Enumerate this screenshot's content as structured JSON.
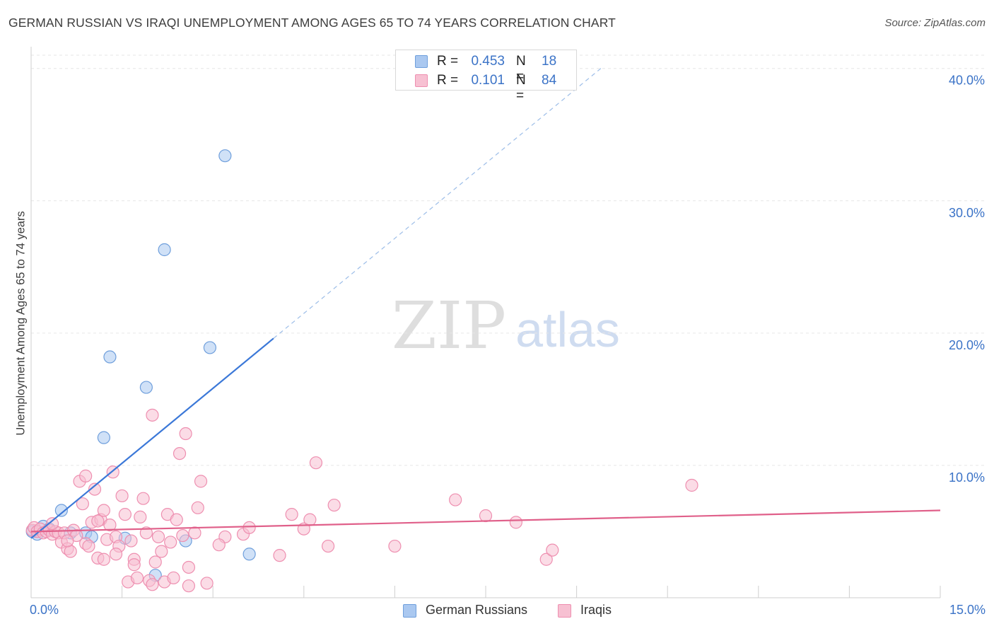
{
  "header": {
    "title": "GERMAN RUSSIAN VS IRAQI UNEMPLOYMENT AMONG AGES 65 TO 74 YEARS CORRELATION CHART",
    "source": "Source: ZipAtlas.com"
  },
  "watermark": {
    "zip": "ZIP",
    "atlas": "atlas"
  },
  "legend": {
    "r_label": "R =",
    "n_label": "N =",
    "rows": [
      {
        "r": "0.453",
        "n": "18",
        "fill": "#aac8f0",
        "stroke": "#6f9fdc"
      },
      {
        "r": "0.101",
        "n": "84",
        "fill": "#f7c0d2",
        "stroke": "#ee8fb0"
      }
    ]
  },
  "chart_data": {
    "type": "scatter",
    "title": "GERMAN RUSSIAN VS IRAQI UNEMPLOYMENT AMONG AGES 65 TO 74 YEARS CORRELATION CHART",
    "xlabel": "",
    "ylabel": "Unemployment Among Ages 65 to 74 years",
    "xlim": [
      0,
      15
    ],
    "ylim": [
      0,
      41
    ],
    "x_tick_labels": [
      "0.0%",
      "15.0%"
    ],
    "y_ticks": [
      10,
      20,
      30,
      40
    ],
    "y_tick_labels": [
      "10.0%",
      "20.0%",
      "30.0%",
      "40.0%"
    ],
    "grid": true,
    "legend_position": "bottom-center",
    "series": [
      {
        "name": "German Russians",
        "color": "#3b78d8",
        "fill": "#aac8f0",
        "r": 0.453,
        "n": 18,
        "points": [
          {
            "x": 0.02,
            "y": 5.0
          },
          {
            "x": 0.1,
            "y": 4.8
          },
          {
            "x": 0.2,
            "y": 5.4
          },
          {
            "x": 0.3,
            "y": 5.2
          },
          {
            "x": 0.5,
            "y": 6.6
          },
          {
            "x": 0.65,
            "y": 4.9
          },
          {
            "x": 0.9,
            "y": 4.9
          },
          {
            "x": 1.0,
            "y": 4.6
          },
          {
            "x": 1.2,
            "y": 12.1
          },
          {
            "x": 1.3,
            "y": 18.2
          },
          {
            "x": 1.55,
            "y": 4.5
          },
          {
            "x": 1.9,
            "y": 15.9
          },
          {
            "x": 2.05,
            "y": 1.7
          },
          {
            "x": 2.2,
            "y": 26.3
          },
          {
            "x": 2.55,
            "y": 4.3
          },
          {
            "x": 2.95,
            "y": 18.9
          },
          {
            "x": 3.2,
            "y": 33.4
          },
          {
            "x": 3.6,
            "y": 3.3
          }
        ],
        "trend": {
          "x0": 0,
          "y0": 4.5,
          "x1": 4.0,
          "y1": 19.6,
          "dash_to_x": 9.4,
          "dash_to_y": 40.0
        }
      },
      {
        "name": "Iraqis",
        "color": "#e0608a",
        "fill": "#f7c0d2",
        "r": 0.101,
        "n": 84,
        "points": [
          {
            "x": 0.02,
            "y": 5.1
          },
          {
            "x": 0.05,
            "y": 5.3
          },
          {
            "x": 0.1,
            "y": 5.0
          },
          {
            "x": 0.15,
            "y": 5.2
          },
          {
            "x": 0.2,
            "y": 4.9
          },
          {
            "x": 0.25,
            "y": 5.0
          },
          {
            "x": 0.3,
            "y": 5.1
          },
          {
            "x": 0.35,
            "y": 4.8
          },
          {
            "x": 0.4,
            "y": 5.0
          },
          {
            "x": 0.45,
            "y": 4.9
          },
          {
            "x": 0.5,
            "y": 4.2
          },
          {
            "x": 0.55,
            "y": 4.9
          },
          {
            "x": 0.6,
            "y": 3.7
          },
          {
            "x": 0.65,
            "y": 3.5
          },
          {
            "x": 0.7,
            "y": 5.1
          },
          {
            "x": 0.75,
            "y": 4.7
          },
          {
            "x": 0.8,
            "y": 8.8
          },
          {
            "x": 0.85,
            "y": 7.1
          },
          {
            "x": 0.9,
            "y": 4.1
          },
          {
            "x": 0.95,
            "y": 3.9
          },
          {
            "x": 1.0,
            "y": 5.7
          },
          {
            "x": 1.05,
            "y": 8.2
          },
          {
            "x": 1.1,
            "y": 3.0
          },
          {
            "x": 1.15,
            "y": 5.9
          },
          {
            "x": 1.2,
            "y": 2.9
          },
          {
            "x": 1.25,
            "y": 4.4
          },
          {
            "x": 1.3,
            "y": 5.5
          },
          {
            "x": 1.35,
            "y": 9.5
          },
          {
            "x": 1.4,
            "y": 4.6
          },
          {
            "x": 1.45,
            "y": 3.9
          },
          {
            "x": 1.5,
            "y": 7.7
          },
          {
            "x": 1.55,
            "y": 6.3
          },
          {
            "x": 1.6,
            "y": 1.2
          },
          {
            "x": 1.65,
            "y": 4.3
          },
          {
            "x": 1.7,
            "y": 2.9
          },
          {
            "x": 1.75,
            "y": 1.5
          },
          {
            "x": 1.8,
            "y": 6.1
          },
          {
            "x": 1.85,
            "y": 7.5
          },
          {
            "x": 1.9,
            "y": 4.9
          },
          {
            "x": 1.95,
            "y": 1.3
          },
          {
            "x": 2.0,
            "y": 13.8
          },
          {
            "x": 2.05,
            "y": 2.7
          },
          {
            "x": 2.1,
            "y": 4.6
          },
          {
            "x": 2.15,
            "y": 3.5
          },
          {
            "x": 2.2,
            "y": 1.2
          },
          {
            "x": 2.25,
            "y": 6.3
          },
          {
            "x": 2.3,
            "y": 4.2
          },
          {
            "x": 2.35,
            "y": 1.5
          },
          {
            "x": 2.4,
            "y": 5.9
          },
          {
            "x": 2.45,
            "y": 10.9
          },
          {
            "x": 2.5,
            "y": 4.7
          },
          {
            "x": 2.55,
            "y": 12.4
          },
          {
            "x": 2.6,
            "y": 2.3
          },
          {
            "x": 2.7,
            "y": 4.9
          },
          {
            "x": 2.75,
            "y": 6.8
          },
          {
            "x": 2.8,
            "y": 8.8
          },
          {
            "x": 2.9,
            "y": 1.1
          },
          {
            "x": 3.2,
            "y": 4.6
          },
          {
            "x": 3.5,
            "y": 4.8
          },
          {
            "x": 3.6,
            "y": 5.3
          },
          {
            "x": 4.1,
            "y": 3.2
          },
          {
            "x": 4.3,
            "y": 6.3
          },
          {
            "x": 4.5,
            "y": 5.2
          },
          {
            "x": 4.6,
            "y": 5.9
          },
          {
            "x": 4.7,
            "y": 10.2
          },
          {
            "x": 4.9,
            "y": 3.9
          },
          {
            "x": 5.0,
            "y": 7.0
          },
          {
            "x": 6.0,
            "y": 3.9
          },
          {
            "x": 7.0,
            "y": 7.4
          },
          {
            "x": 7.5,
            "y": 6.2
          },
          {
            "x": 8.0,
            "y": 5.7
          },
          {
            "x": 8.5,
            "y": 2.9
          },
          {
            "x": 8.6,
            "y": 3.6
          },
          {
            "x": 10.9,
            "y": 8.5
          },
          {
            "x": 1.2,
            "y": 6.6
          },
          {
            "x": 2.0,
            "y": 1.0
          },
          {
            "x": 1.7,
            "y": 2.5
          },
          {
            "x": 0.9,
            "y": 9.2
          },
          {
            "x": 1.4,
            "y": 3.3
          },
          {
            "x": 0.6,
            "y": 4.3
          },
          {
            "x": 1.1,
            "y": 5.8
          },
          {
            "x": 2.6,
            "y": 0.9
          },
          {
            "x": 0.35,
            "y": 5.6
          },
          {
            "x": 3.1,
            "y": 4.0
          }
        ],
        "trend": {
          "x0": 0,
          "y0": 5.0,
          "x1": 15.0,
          "y1": 6.6
        }
      }
    ]
  }
}
